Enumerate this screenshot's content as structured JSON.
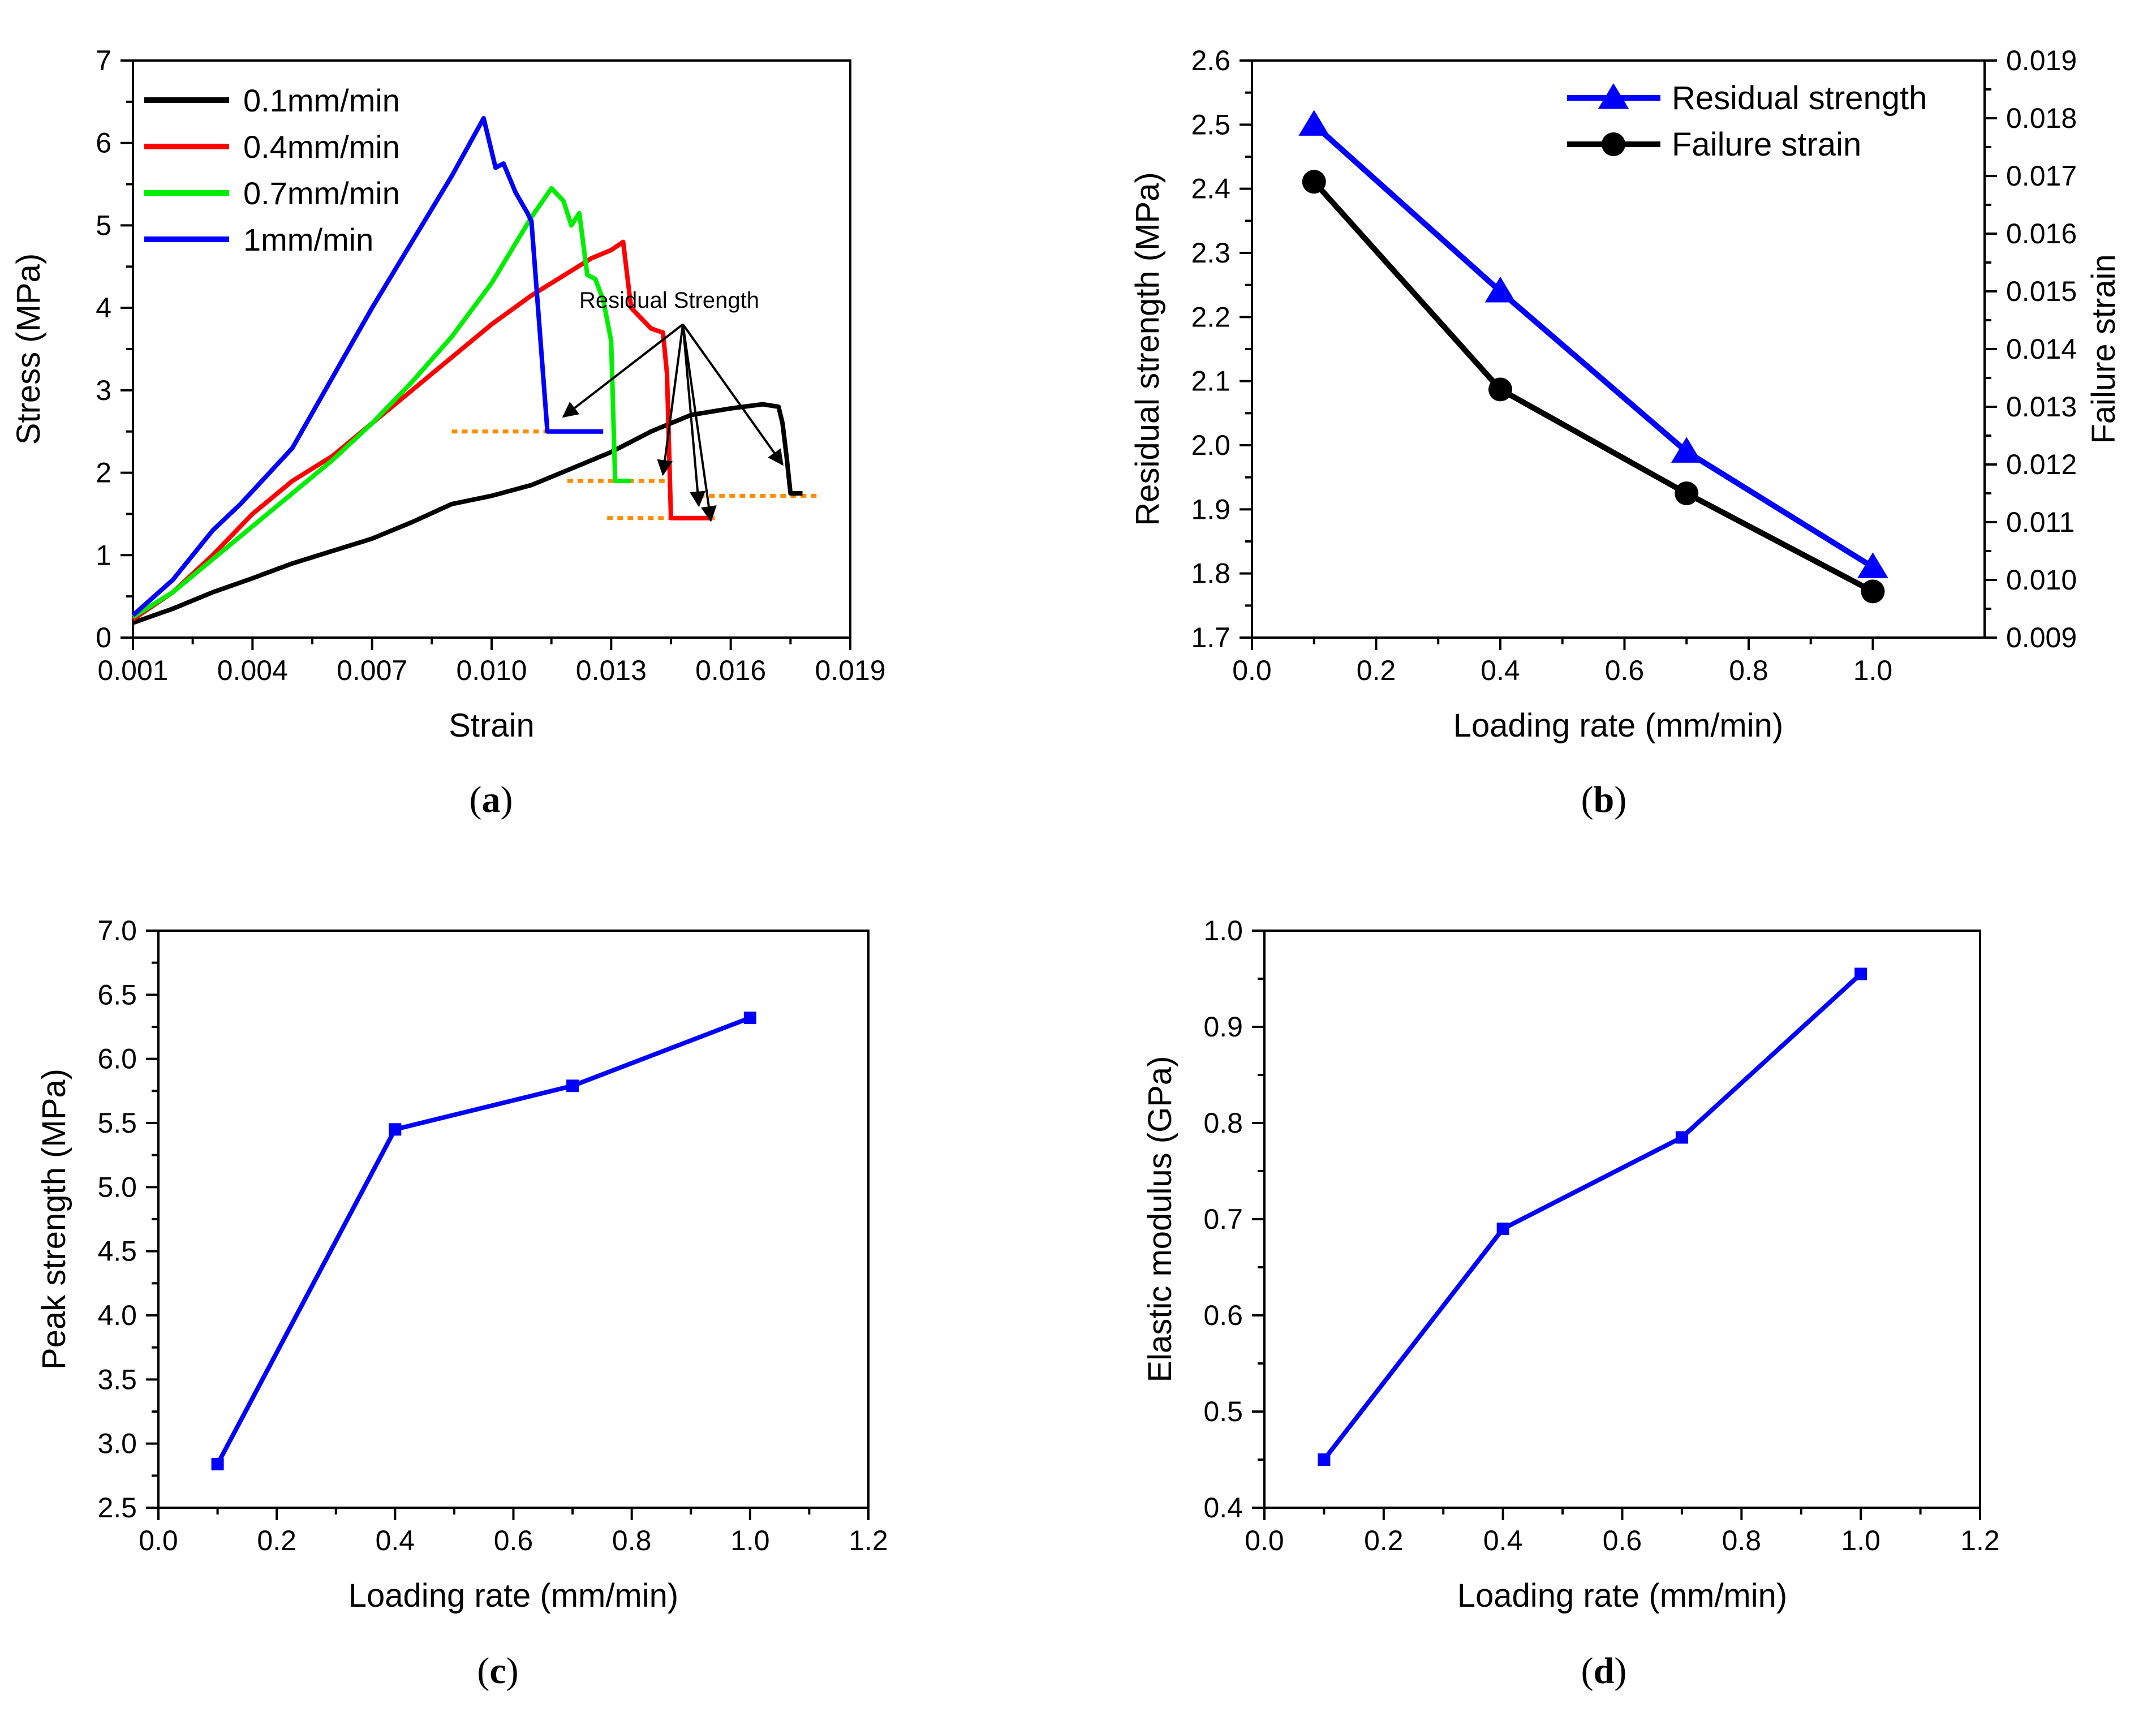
{
  "chart_data": [
    {
      "id": "a",
      "type": "line",
      "caption_letter": "a",
      "xlabel": "Strain",
      "ylabel": "Stress (MPa)",
      "xlim": [
        0.001,
        0.019
      ],
      "ylim": [
        0,
        7
      ],
      "xticks": [
        "0.001",
        "0.004",
        "0.007",
        "0.010",
        "0.013",
        "0.016",
        "0.019"
      ],
      "yticks": [
        "0",
        "1",
        "2",
        "3",
        "4",
        "5",
        "6",
        "7"
      ],
      "series": [
        {
          "name": "0.1mm/min",
          "color": "#000000",
          "x": [
            0.001,
            0.002,
            0.003,
            0.004,
            0.005,
            0.006,
            0.007,
            0.008,
            0.009,
            0.01,
            0.011,
            0.012,
            0.013,
            0.014,
            0.015,
            0.016,
            0.0168,
            0.0172,
            0.0173,
            0.0174,
            0.0175,
            0.0178
          ],
          "y": [
            0.18,
            0.35,
            0.55,
            0.72,
            0.9,
            1.05,
            1.2,
            1.4,
            1.62,
            1.72,
            1.85,
            2.05,
            2.25,
            2.5,
            2.7,
            2.78,
            2.83,
            2.8,
            2.6,
            2.2,
            1.75,
            1.75
          ]
        },
        {
          "name": "0.4mm/min",
          "color": "#ff0000",
          "x": [
            0.001,
            0.002,
            0.003,
            0.004,
            0.005,
            0.006,
            0.007,
            0.008,
            0.009,
            0.01,
            0.011,
            0.012,
            0.0125,
            0.013,
            0.0133,
            0.0135,
            0.0137,
            0.014,
            0.0143,
            0.0144,
            0.0145,
            0.0147,
            0.0155
          ],
          "y": [
            0.22,
            0.55,
            1.0,
            1.5,
            1.9,
            2.2,
            2.6,
            3.0,
            3.4,
            3.8,
            4.15,
            4.45,
            4.6,
            4.7,
            4.8,
            4.0,
            3.9,
            3.75,
            3.7,
            3.2,
            1.45,
            1.45,
            1.45
          ]
        },
        {
          "name": "0.7mm/min",
          "color": "#00ee00",
          "x": [
            0.001,
            0.002,
            0.003,
            0.004,
            0.005,
            0.006,
            0.007,
            0.008,
            0.009,
            0.01,
            0.0105,
            0.011,
            0.0115,
            0.0118,
            0.012,
            0.0122,
            0.0124,
            0.0126,
            0.0128,
            0.013,
            0.0131,
            0.0135
          ],
          "y": [
            0.25,
            0.55,
            0.95,
            1.35,
            1.75,
            2.15,
            2.6,
            3.1,
            3.65,
            4.3,
            4.7,
            5.1,
            5.45,
            5.3,
            5.0,
            5.15,
            4.4,
            4.35,
            4.1,
            3.6,
            1.9,
            1.9
          ]
        },
        {
          "name": "1mm/min",
          "color": "#0000ff",
          "x": [
            0.001,
            0.002,
            0.003,
            0.0037,
            0.005,
            0.006,
            0.007,
            0.008,
            0.009,
            0.0098,
            0.0101,
            0.0103,
            0.0106,
            0.0109,
            0.011,
            0.0114,
            0.0117,
            0.0128
          ],
          "y": [
            0.27,
            0.7,
            1.3,
            1.62,
            2.3,
            3.15,
            4.0,
            4.8,
            5.6,
            6.3,
            5.7,
            5.75,
            5.4,
            5.15,
            5.05,
            2.5,
            2.5,
            2.5
          ]
        }
      ],
      "annotations": [
        {
          "text": "Residual Strength",
          "x": 0.0122,
          "y": 4.0
        }
      ],
      "annotation_arrow_start": {
        "x": 0.0148,
        "y": 3.8
      },
      "annotation_arrow_targets": [
        {
          "x": 0.0118,
          "y": 2.68
        },
        {
          "x": 0.0143,
          "y": 1.98
        },
        {
          "x": 0.0152,
          "y": 1.6
        },
        {
          "x": 0.0155,
          "y": 1.42
        },
        {
          "x": 0.0173,
          "y": 2.1
        }
      ],
      "reference_lines": [
        {
          "x_from": 0.009,
          "x_to": 0.0128,
          "y": 2.5,
          "color": "#ff8c00"
        },
        {
          "x_from": 0.0119,
          "x_to": 0.0145,
          "y": 1.9,
          "color": "#ff8c00"
        },
        {
          "x_from": 0.0129,
          "x_to": 0.0157,
          "y": 1.45,
          "color": "#ff8c00"
        },
        {
          "x_from": 0.0152,
          "x_to": 0.0182,
          "y": 1.72,
          "color": "#ff8c00"
        }
      ],
      "legend": "top-left"
    },
    {
      "id": "b",
      "type": "line",
      "caption_letter": "b",
      "xlabel": "Loading rate (mm/min)",
      "ylabel": "Residual strength (MPa)",
      "y2label": "Failure strain",
      "xlim": [
        0.0,
        1.18
      ],
      "ylim": [
        1.7,
        2.6
      ],
      "y2lim": [
        0.009,
        0.019
      ],
      "xticks": [
        "0.0",
        "0.2",
        "0.4",
        "0.6",
        "0.8",
        "1.0"
      ],
      "yticks": [
        "1.7",
        "1.8",
        "1.9",
        "2.0",
        "2.1",
        "2.2",
        "2.3",
        "2.4",
        "2.5",
        "2.6"
      ],
      "y2ticks": [
        "0.009",
        "0.010",
        "0.011",
        "0.012",
        "0.013",
        "0.014",
        "0.015",
        "0.016",
        "0.017",
        "0.018",
        "0.019"
      ],
      "x": [
        0.1,
        0.4,
        0.7,
        1.0
      ],
      "series": [
        {
          "name": "Residual strength",
          "color": "#0000ff",
          "marker": "triangle",
          "axis": "left",
          "values": [
            2.5,
            2.24,
            1.99,
            1.81
          ]
        },
        {
          "name": "Failure strain",
          "color": "#000000",
          "marker": "circle",
          "axis": "right",
          "values": [
            0.0169,
            0.0133,
            0.0115,
            0.0098
          ]
        }
      ],
      "legend": "top-right"
    },
    {
      "id": "c",
      "type": "line",
      "caption_letter": "c",
      "xlabel": "Loading rate (mm/min)",
      "ylabel": "Peak strength (MPa)",
      "xlim": [
        0.0,
        1.2
      ],
      "ylim": [
        2.5,
        7.0
      ],
      "xticks": [
        "0.0",
        "0.2",
        "0.4",
        "0.6",
        "0.8",
        "1.0",
        "1.2"
      ],
      "yticks": [
        "2.5",
        "3.0",
        "3.5",
        "4.0",
        "4.5",
        "5.0",
        "5.5",
        "6.0",
        "6.5",
        "7.0"
      ],
      "x": [
        0.1,
        0.4,
        0.7,
        1.0
      ],
      "series": [
        {
          "name": "Peak strength",
          "color": "#0000ff",
          "marker": "square",
          "values": [
            2.84,
            5.45,
            5.79,
            6.32
          ]
        }
      ]
    },
    {
      "id": "d",
      "type": "line",
      "caption_letter": "d",
      "xlabel": "Loading rate (mm/min)",
      "ylabel": "Elastic modulus (GPa)",
      "xlim": [
        0.0,
        1.2
      ],
      "ylim": [
        0.4,
        1.0
      ],
      "xticks": [
        "0.0",
        "0.2",
        "0.4",
        "0.6",
        "0.8",
        "1.0",
        "1.2"
      ],
      "yticks": [
        "0.4",
        "0.5",
        "0.6",
        "0.7",
        "0.8",
        "0.9",
        "1.0"
      ],
      "x": [
        0.1,
        0.4,
        0.7,
        1.0
      ],
      "series": [
        {
          "name": "Elastic modulus",
          "color": "#0000ff",
          "marker": "square",
          "values": [
            0.45,
            0.69,
            0.785,
            0.955
          ]
        }
      ]
    }
  ]
}
